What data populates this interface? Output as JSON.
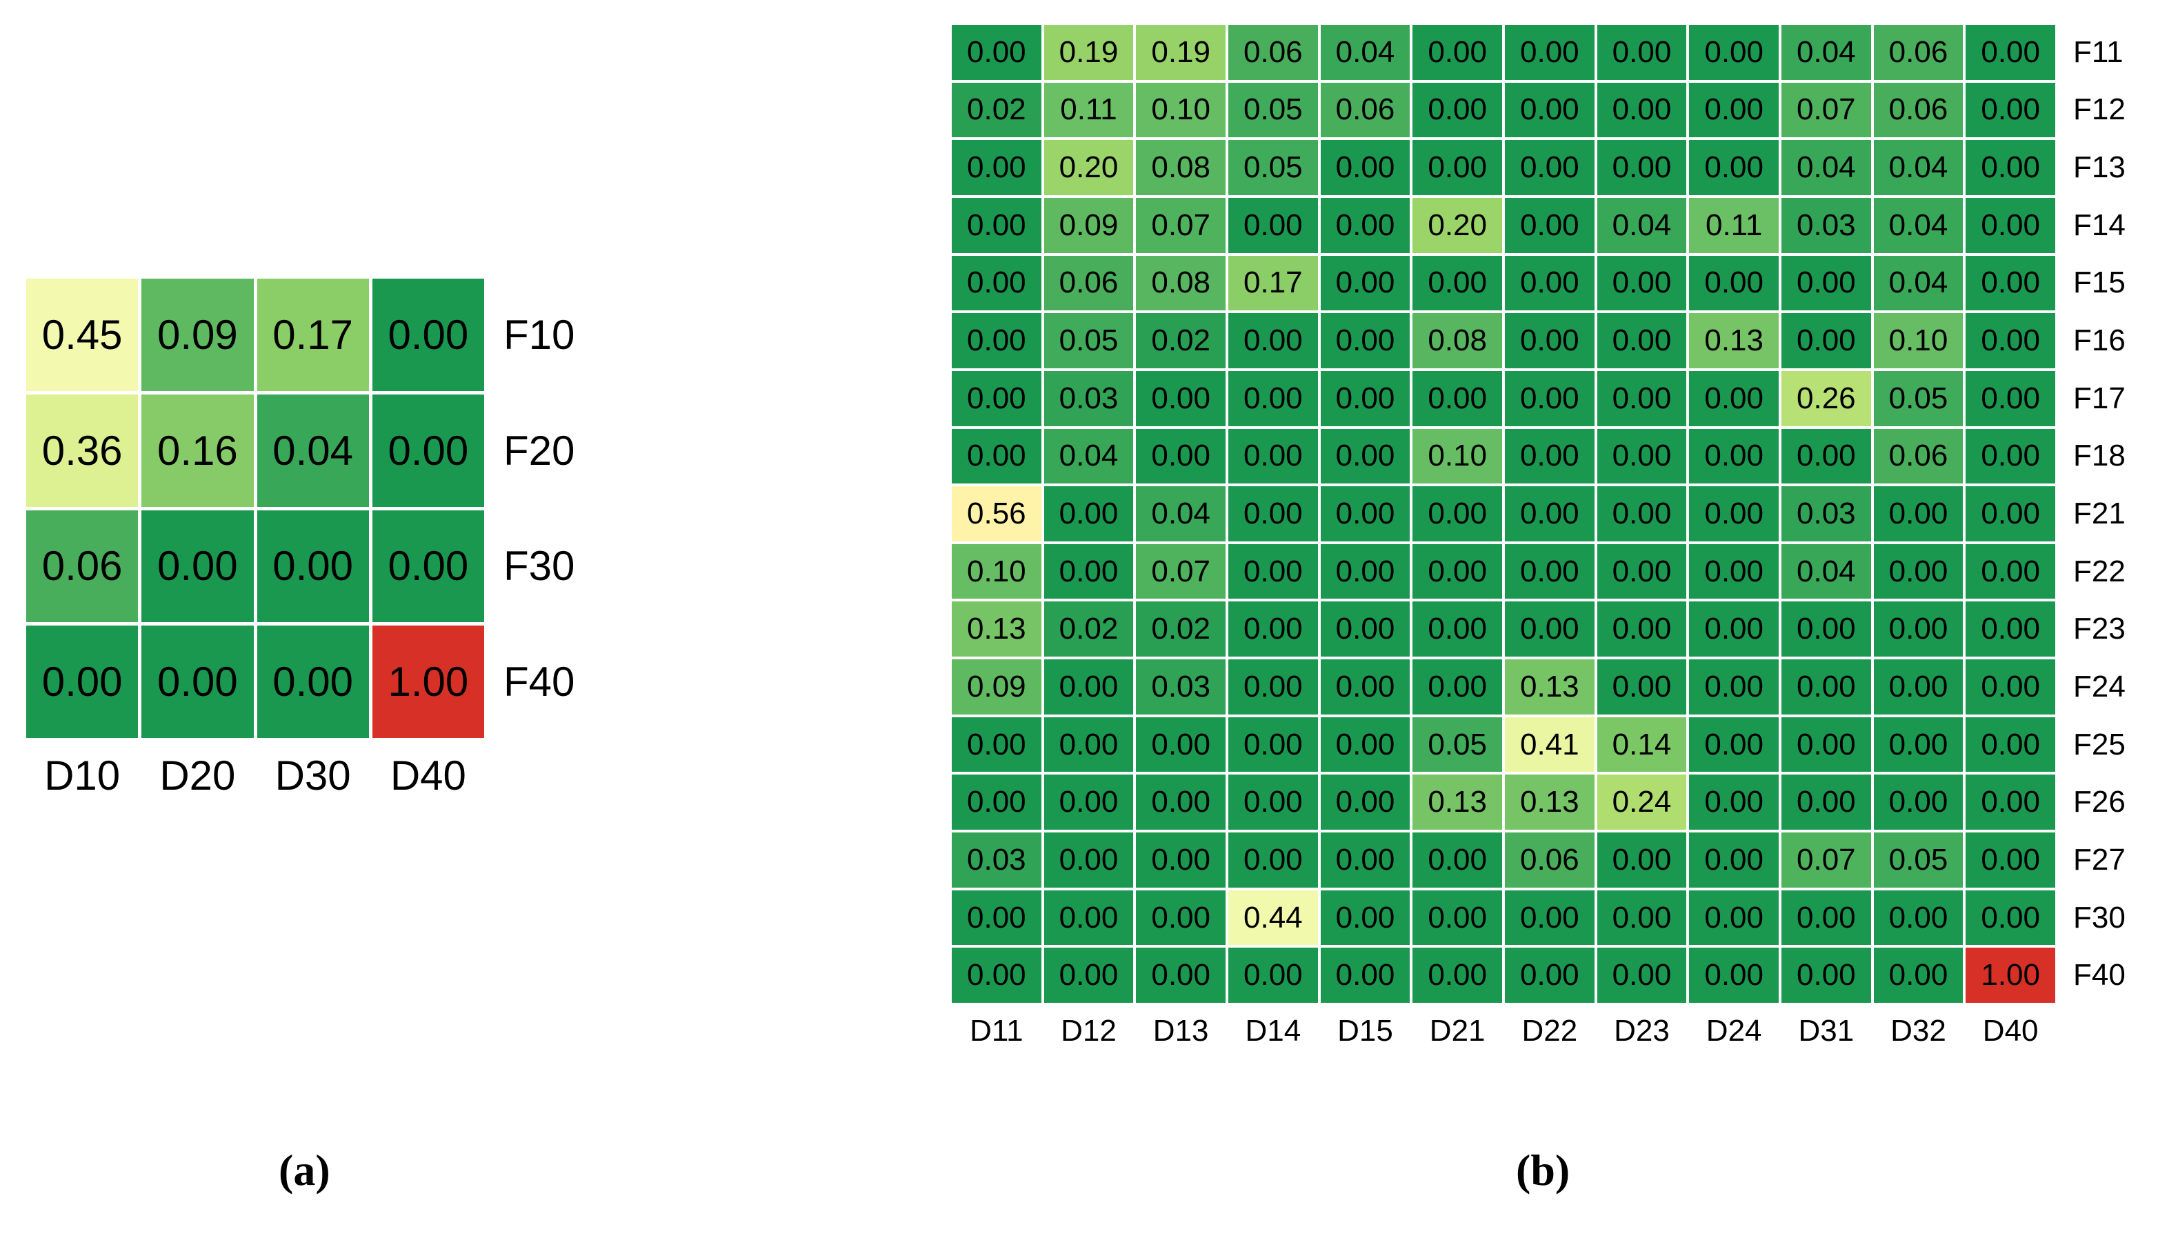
{
  "figure": {
    "caption_a": "(a)",
    "caption_b": "(b)"
  },
  "colors": {
    "scale_low": "#1a9850",
    "scale_mid_green": "#66bd63",
    "scale_light_green": "#a6d96a",
    "scale_yellow": "#ffffbf",
    "scale_high": "#d73027",
    "gridline": "#ffffff"
  },
  "chart_data": [
    {
      "type": "heatmap",
      "panel": "a",
      "title": "",
      "xlabel": "",
      "ylabel": "",
      "x_labels": [
        "D10",
        "D20",
        "D30",
        "D40"
      ],
      "y_labels": [
        "F10",
        "F20",
        "F30",
        "F40"
      ],
      "y_label_position": "right",
      "x_label_position": "bottom",
      "value_range": [
        0,
        1
      ],
      "colormap": "green (0) -> yellow (~0.5) -> red (1)",
      "values": [
        [
          "0.45",
          "0.09",
          "0.17",
          "0.00"
        ],
        [
          "0.36",
          "0.16",
          "0.04",
          "0.00"
        ],
        [
          "0.06",
          "0.00",
          "0.00",
          "0.00"
        ],
        [
          "0.00",
          "0.00",
          "0.00",
          "1.00"
        ]
      ]
    },
    {
      "type": "heatmap",
      "panel": "b",
      "title": "",
      "xlabel": "",
      "ylabel": "",
      "x_labels": [
        "D11",
        "D12",
        "D13",
        "D14",
        "D15",
        "D21",
        "D22",
        "D23",
        "D24",
        "D31",
        "D32",
        "D40"
      ],
      "y_labels": [
        "F11",
        "F12",
        "F13",
        "F14",
        "F15",
        "F16",
        "F17",
        "F18",
        "F21",
        "F22",
        "F23",
        "F24",
        "F25",
        "F26",
        "F27",
        "F30",
        "F40"
      ],
      "y_label_position": "right",
      "x_label_position": "bottom",
      "value_range": [
        0,
        1
      ],
      "colormap": "green (0) -> yellow (~0.5) -> red (1)",
      "values": [
        [
          "0.00",
          "0.19",
          "0.19",
          "0.06",
          "0.04",
          "0.00",
          "0.00",
          "0.00",
          "0.00",
          "0.04",
          "0.06",
          "0.00"
        ],
        [
          "0.02",
          "0.11",
          "0.10",
          "0.05",
          "0.06",
          "0.00",
          "0.00",
          "0.00",
          "0.00",
          "0.07",
          "0.06",
          "0.00"
        ],
        [
          "0.00",
          "0.20",
          "0.08",
          "0.05",
          "0.00",
          "0.00",
          "0.00",
          "0.00",
          "0.00",
          "0.04",
          "0.04",
          "0.00"
        ],
        [
          "0.00",
          "0.09",
          "0.07",
          "0.00",
          "0.00",
          "0.20",
          "0.00",
          "0.04",
          "0.11",
          "0.03",
          "0.04",
          "0.00"
        ],
        [
          "0.00",
          "0.06",
          "0.08",
          "0.17",
          "0.00",
          "0.00",
          "0.00",
          "0.00",
          "0.00",
          "0.00",
          "0.04",
          "0.00"
        ],
        [
          "0.00",
          "0.05",
          "0.02",
          "0.00",
          "0.00",
          "0.08",
          "0.00",
          "0.00",
          "0.13",
          "0.00",
          "0.10",
          "0.00"
        ],
        [
          "0.00",
          "0.03",
          "0.00",
          "0.00",
          "0.00",
          "0.00",
          "0.00",
          "0.00",
          "0.00",
          "0.26",
          "0.05",
          "0.00"
        ],
        [
          "0.00",
          "0.04",
          "0.00",
          "0.00",
          "0.00",
          "0.10",
          "0.00",
          "0.00",
          "0.00",
          "0.00",
          "0.06",
          "0.00"
        ],
        [
          "0.56",
          "0.00",
          "0.04",
          "0.00",
          "0.00",
          "0.00",
          "0.00",
          "0.00",
          "0.00",
          "0.03",
          "0.00",
          "0.00"
        ],
        [
          "0.10",
          "0.00",
          "0.07",
          "0.00",
          "0.00",
          "0.00",
          "0.00",
          "0.00",
          "0.00",
          "0.04",
          "0.00",
          "0.00"
        ],
        [
          "0.13",
          "0.02",
          "0.02",
          "0.00",
          "0.00",
          "0.00",
          "0.00",
          "0.00",
          "0.00",
          "0.00",
          "0.00",
          "0.00"
        ],
        [
          "0.09",
          "0.00",
          "0.03",
          "0.00",
          "0.00",
          "0.00",
          "0.13",
          "0.00",
          "0.00",
          "0.00",
          "0.00",
          "0.00"
        ],
        [
          "0.00",
          "0.00",
          "0.00",
          "0.00",
          "0.00",
          "0.05",
          "0.41",
          "0.14",
          "0.00",
          "0.00",
          "0.00",
          "0.00"
        ],
        [
          "0.00",
          "0.00",
          "0.00",
          "0.00",
          "0.00",
          "0.13",
          "0.13",
          "0.24",
          "0.00",
          "0.00",
          "0.00",
          "0.00"
        ],
        [
          "0.03",
          "0.00",
          "0.00",
          "0.00",
          "0.00",
          "0.00",
          "0.06",
          "0.00",
          "0.00",
          "0.07",
          "0.05",
          "0.00"
        ],
        [
          "0.00",
          "0.00",
          "0.00",
          "0.44",
          "0.00",
          "0.00",
          "0.00",
          "0.00",
          "0.00",
          "0.00",
          "0.00",
          "0.00"
        ],
        [
          "0.00",
          "0.00",
          "0.00",
          "0.00",
          "0.00",
          "0.00",
          "0.00",
          "0.00",
          "0.00",
          "0.00",
          "0.00",
          "1.00"
        ]
      ]
    }
  ]
}
